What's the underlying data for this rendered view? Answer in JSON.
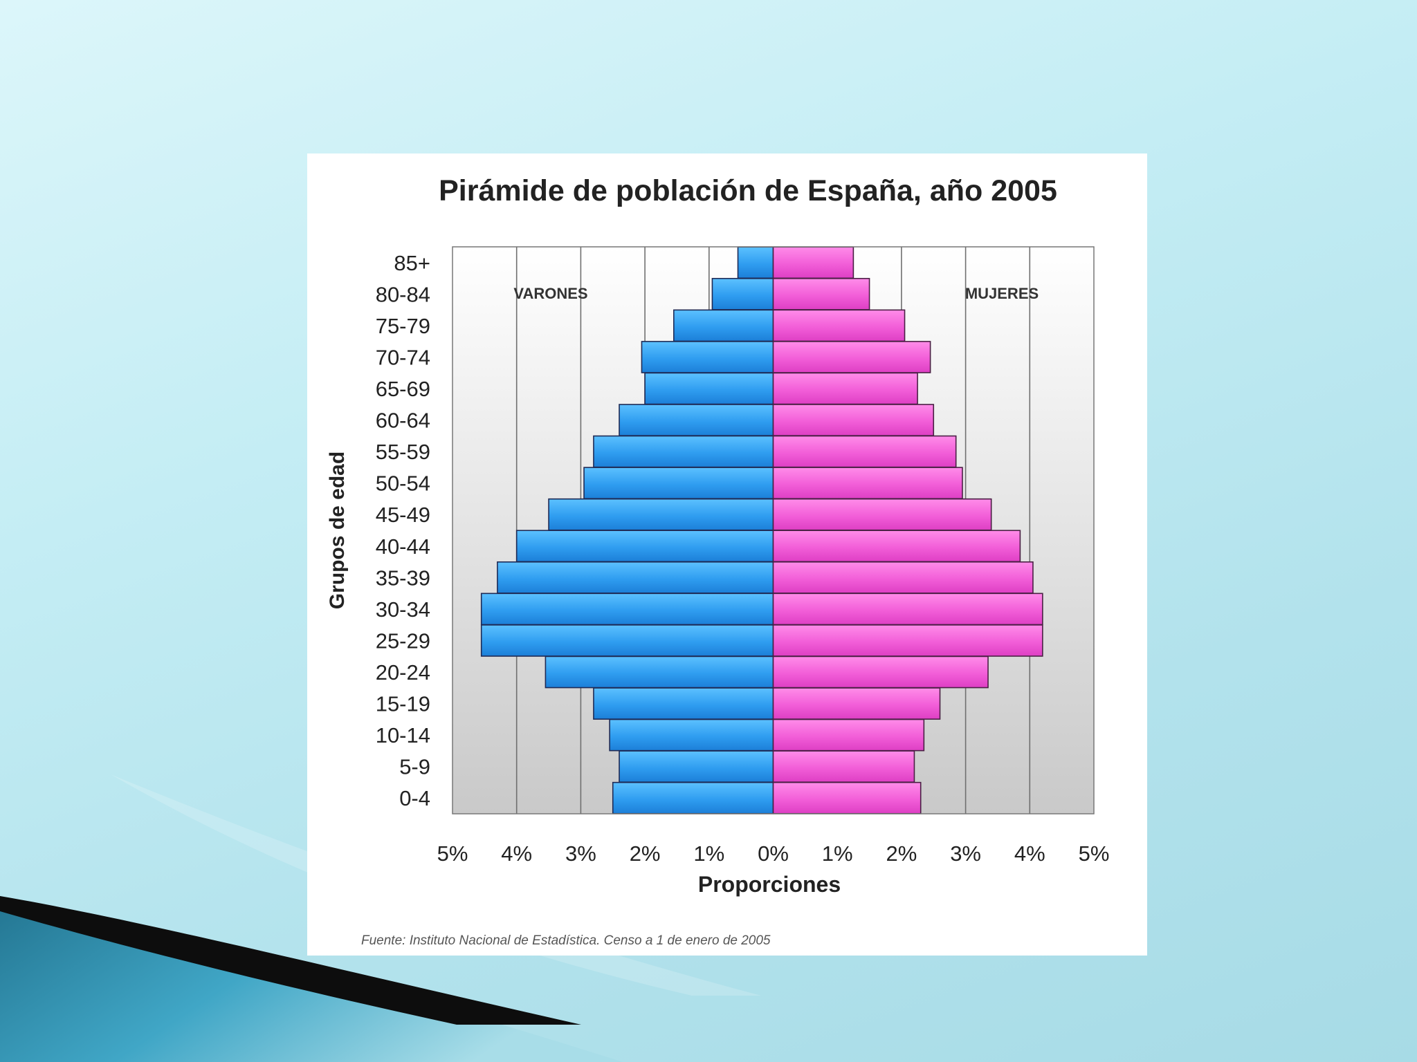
{
  "chart_data": {
    "type": "bar",
    "orientation": "horizontal",
    "variant": "population-pyramid",
    "title": "Pirámide de población de España, año 2005",
    "xlabel": "Proporciones",
    "ylabel": "Grupos de edad",
    "categories": [
      "0-4",
      "5-9",
      "10-14",
      "15-19",
      "20-24",
      "25-29",
      "30-34",
      "35-39",
      "40-44",
      "45-49",
      "50-54",
      "55-59",
      "60-64",
      "65-69",
      "70-74",
      "75-79",
      "80-84",
      "85+"
    ],
    "series": [
      {
        "name": "VARONES",
        "side": "left",
        "color": "#2f9df0",
        "values": [
          2.5,
          2.4,
          2.55,
          2.8,
          3.55,
          4.55,
          4.55,
          4.3,
          4.0,
          3.5,
          2.95,
          2.8,
          2.4,
          2.0,
          2.05,
          1.55,
          0.95,
          0.55
        ]
      },
      {
        "name": "MUJERES",
        "side": "right",
        "color": "#f25ed8",
        "values": [
          2.3,
          2.2,
          2.35,
          2.6,
          3.35,
          4.2,
          4.2,
          4.05,
          3.85,
          3.4,
          2.95,
          2.85,
          2.5,
          2.25,
          2.45,
          2.05,
          1.5,
          1.25
        ]
      }
    ],
    "xlim": [
      -5,
      5
    ],
    "xticks": [
      "5%",
      "4%",
      "3%",
      "2%",
      "1%",
      "0%",
      "1%",
      "2%",
      "3%",
      "4%",
      "5%"
    ],
    "grid": true,
    "source": "Fuente: Instituto Nacional de Estadística. Censo a 1 de enero de 2005"
  }
}
